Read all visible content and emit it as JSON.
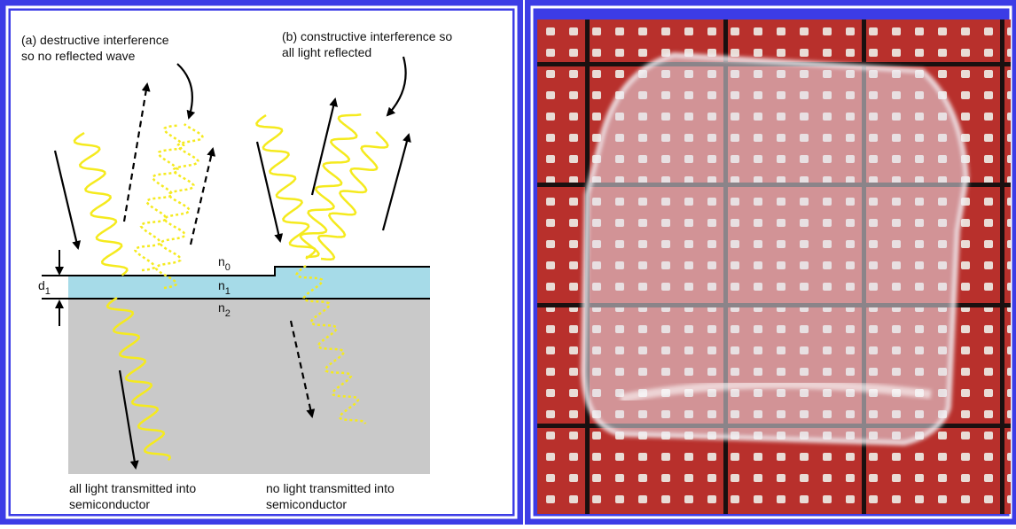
{
  "panel_a": {
    "caption": [
      "(a) destructive interference",
      "so no reflected wave"
    ],
    "footer": [
      "all light transmitted into",
      "semiconductor"
    ]
  },
  "panel_b": {
    "caption": [
      "(b) constructive interference so",
      "all light reflected"
    ],
    "footer": [
      "no light transmitted into",
      "semiconductor"
    ]
  },
  "layers": [
    {
      "symbol": "n",
      "subscript": "0"
    },
    {
      "symbol": "n",
      "subscript": "1"
    },
    {
      "symbol": "n",
      "subscript": "2"
    }
  ],
  "thickness": {
    "symbol": "d",
    "subscript": "1"
  }
}
